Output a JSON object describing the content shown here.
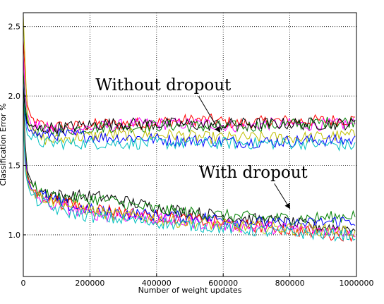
{
  "chart_data": {
    "type": "line",
    "xlabel": "Number of weight updates",
    "ylabel": "Classification Error %",
    "xlim": [
      0,
      1000000
    ],
    "ylim": [
      0.7,
      2.6
    ],
    "x_ticks": [
      0,
      200000,
      400000,
      600000,
      800000,
      1000000
    ],
    "x_tick_labels": [
      "0",
      "200000",
      "400000",
      "600000",
      "800000",
      "1000000"
    ],
    "y_ticks": [
      1.0,
      1.5,
      2.0,
      2.5
    ],
    "y_tick_labels": [
      "1.0",
      "1.5",
      "2.0",
      "2.5"
    ],
    "grid": true,
    "grid_style": "dotted",
    "annotations": [
      {
        "text": "Without dropout",
        "x": 420000,
        "y": 2.04,
        "arrow_to": [
          590000,
          1.74
        ]
      },
      {
        "text": "With dropout",
        "x": 690000,
        "y": 1.41,
        "arrow_to": [
          800000,
          1.19
        ]
      }
    ],
    "series_groups": [
      {
        "group": "Without dropout",
        "series": [
          {
            "color": "#ff0000",
            "points": [
              [
                0,
                2.4
              ],
              [
                5000,
                2.2
              ],
              [
                10000,
                1.95
              ],
              [
                20000,
                1.85
              ],
              [
                40000,
                1.8
              ],
              [
                80000,
                1.78
              ],
              [
                150000,
                1.78
              ],
              [
                250000,
                1.8
              ],
              [
                350000,
                1.8
              ],
              [
                450000,
                1.82
              ],
              [
                550000,
                1.83
              ],
              [
                650000,
                1.8
              ],
              [
                750000,
                1.82
              ],
              [
                850000,
                1.82
              ],
              [
                1000000,
                1.83
              ]
            ]
          },
          {
            "color": "#ff00ff",
            "points": [
              [
                0,
                2.3
              ],
              [
                5000,
                2.05
              ],
              [
                10000,
                1.9
              ],
              [
                20000,
                1.8
              ],
              [
                40000,
                1.78
              ],
              [
                80000,
                1.76
              ],
              [
                150000,
                1.76
              ],
              [
                250000,
                1.78
              ],
              [
                350000,
                1.8
              ],
              [
                450000,
                1.8
              ],
              [
                550000,
                1.8
              ],
              [
                650000,
                1.78
              ],
              [
                750000,
                1.8
              ],
              [
                850000,
                1.79
              ],
              [
                1000000,
                1.8
              ]
            ]
          },
          {
            "color": "#008000",
            "points": [
              [
                0,
                2.2
              ],
              [
                5000,
                1.95
              ],
              [
                10000,
                1.85
              ],
              [
                20000,
                1.78
              ],
              [
                40000,
                1.75
              ],
              [
                80000,
                1.75
              ],
              [
                150000,
                1.76
              ],
              [
                250000,
                1.78
              ],
              [
                350000,
                1.78
              ],
              [
                450000,
                1.79
              ],
              [
                550000,
                1.78
              ],
              [
                650000,
                1.78
              ],
              [
                750000,
                1.79
              ],
              [
                850000,
                1.8
              ],
              [
                1000000,
                1.82
              ]
            ]
          },
          {
            "color": "#bfbf00",
            "points": [
              [
                0,
                2.6
              ],
              [
                5000,
                2.3
              ],
              [
                10000,
                1.9
              ],
              [
                20000,
                1.78
              ],
              [
                40000,
                1.7
              ],
              [
                80000,
                1.68
              ],
              [
                150000,
                1.7
              ],
              [
                250000,
                1.72
              ],
              [
                350000,
                1.72
              ],
              [
                450000,
                1.72
              ],
              [
                550000,
                1.7
              ],
              [
                650000,
                1.7
              ],
              [
                750000,
                1.7
              ],
              [
                850000,
                1.7
              ],
              [
                1000000,
                1.72
              ]
            ]
          },
          {
            "color": "#0000ff",
            "points": [
              [
                0,
                2.1
              ],
              [
                5000,
                1.9
              ],
              [
                10000,
                1.8
              ],
              [
                20000,
                1.75
              ],
              [
                40000,
                1.72
              ],
              [
                80000,
                1.72
              ],
              [
                150000,
                1.72
              ],
              [
                250000,
                1.7
              ],
              [
                350000,
                1.7
              ],
              [
                450000,
                1.68
              ],
              [
                550000,
                1.68
              ],
              [
                650000,
                1.67
              ],
              [
                750000,
                1.67
              ],
              [
                850000,
                1.68
              ],
              [
                1000000,
                1.68
              ]
            ]
          },
          {
            "color": "#00bfbf",
            "points": [
              [
                0,
                2.0
              ],
              [
                5000,
                1.85
              ],
              [
                10000,
                1.75
              ],
              [
                20000,
                1.7
              ],
              [
                40000,
                1.67
              ],
              [
                80000,
                1.66
              ],
              [
                150000,
                1.66
              ],
              [
                250000,
                1.66
              ],
              [
                350000,
                1.66
              ],
              [
                450000,
                1.66
              ],
              [
                550000,
                1.66
              ],
              [
                650000,
                1.66
              ],
              [
                750000,
                1.66
              ],
              [
                850000,
                1.66
              ],
              [
                1000000,
                1.64
              ]
            ]
          },
          {
            "color": "#000000",
            "points": [
              [
                0,
                2.05
              ],
              [
                5000,
                1.9
              ],
              [
                10000,
                1.82
              ],
              [
                20000,
                1.78
              ],
              [
                40000,
                1.76
              ],
              [
                80000,
                1.77
              ],
              [
                150000,
                1.78
              ],
              [
                250000,
                1.8
              ],
              [
                350000,
                1.8
              ],
              [
                450000,
                1.8
              ],
              [
                550000,
                1.79
              ],
              [
                650000,
                1.8
              ],
              [
                750000,
                1.8
              ],
              [
                850000,
                1.8
              ],
              [
                1000000,
                1.8
              ]
            ]
          }
        ]
      },
      {
        "group": "With dropout",
        "series": [
          {
            "color": "#000000",
            "points": [
              [
                0,
                2.0
              ],
              [
                5000,
                1.7
              ],
              [
                10000,
                1.5
              ],
              [
                20000,
                1.4
              ],
              [
                40000,
                1.33
              ],
              [
                80000,
                1.3
              ],
              [
                120000,
                1.28
              ],
              [
                180000,
                1.28
              ],
              [
                250000,
                1.27
              ],
              [
                350000,
                1.22
              ],
              [
                450000,
                1.18
              ],
              [
                550000,
                1.15
              ],
              [
                650000,
                1.12
              ],
              [
                750000,
                1.1
              ],
              [
                850000,
                1.07
              ],
              [
                950000,
                1.05
              ],
              [
                1000000,
                1.05
              ]
            ]
          },
          {
            "color": "#008000",
            "points": [
              [
                0,
                1.95
              ],
              [
                5000,
                1.65
              ],
              [
                10000,
                1.48
              ],
              [
                20000,
                1.38
              ],
              [
                40000,
                1.32
              ],
              [
                80000,
                1.28
              ],
              [
                120000,
                1.27
              ],
              [
                180000,
                1.26
              ],
              [
                250000,
                1.25
              ],
              [
                350000,
                1.2
              ],
              [
                450000,
                1.17
              ],
              [
                550000,
                1.15
              ],
              [
                650000,
                1.13
              ],
              [
                750000,
                1.12
              ],
              [
                850000,
                1.12
              ],
              [
                950000,
                1.13
              ],
              [
                1000000,
                1.15
              ]
            ]
          },
          {
            "color": "#ff0000",
            "points": [
              [
                0,
                1.9
              ],
              [
                5000,
                1.6
              ],
              [
                10000,
                1.45
              ],
              [
                20000,
                1.35
              ],
              [
                40000,
                1.3
              ],
              [
                80000,
                1.26
              ],
              [
                120000,
                1.23
              ],
              [
                180000,
                1.2
              ],
              [
                250000,
                1.18
              ],
              [
                350000,
                1.15
              ],
              [
                450000,
                1.12
              ],
              [
                550000,
                1.1
              ],
              [
                650000,
                1.07
              ],
              [
                750000,
                1.05
              ],
              [
                850000,
                1.02
              ],
              [
                950000,
                1.0
              ],
              [
                1000000,
                1.0
              ]
            ]
          },
          {
            "color": "#0000ff",
            "points": [
              [
                0,
                1.9
              ],
              [
                5000,
                1.6
              ],
              [
                10000,
                1.44
              ],
              [
                20000,
                1.35
              ],
              [
                40000,
                1.3
              ],
              [
                80000,
                1.26
              ],
              [
                120000,
                1.22
              ],
              [
                180000,
                1.19
              ],
              [
                250000,
                1.16
              ],
              [
                350000,
                1.15
              ],
              [
                450000,
                1.13
              ],
              [
                550000,
                1.12
              ],
              [
                650000,
                1.1
              ],
              [
                750000,
                1.08
              ],
              [
                850000,
                1.08
              ],
              [
                950000,
                1.1
              ],
              [
                1000000,
                1.1
              ]
            ]
          },
          {
            "color": "#ff00ff",
            "points": [
              [
                0,
                1.85
              ],
              [
                5000,
                1.55
              ],
              [
                10000,
                1.4
              ],
              [
                20000,
                1.32
              ],
              [
                40000,
                1.27
              ],
              [
                80000,
                1.22
              ],
              [
                120000,
                1.2
              ],
              [
                180000,
                1.16
              ],
              [
                250000,
                1.14
              ],
              [
                350000,
                1.13
              ],
              [
                450000,
                1.1
              ],
              [
                550000,
                1.08
              ],
              [
                650000,
                1.06
              ],
              [
                750000,
                1.05
              ],
              [
                850000,
                1.04
              ],
              [
                950000,
                1.03
              ],
              [
                1000000,
                1.02
              ]
            ]
          },
          {
            "color": "#bfbf00",
            "points": [
              [
                0,
                1.85
              ],
              [
                5000,
                1.55
              ],
              [
                10000,
                1.42
              ],
              [
                20000,
                1.34
              ],
              [
                40000,
                1.29
              ],
              [
                80000,
                1.25
              ],
              [
                120000,
                1.22
              ],
              [
                180000,
                1.19
              ],
              [
                250000,
                1.15
              ],
              [
                350000,
                1.13
              ],
              [
                450000,
                1.1
              ],
              [
                550000,
                1.08
              ],
              [
                650000,
                1.06
              ],
              [
                750000,
                1.05
              ],
              [
                850000,
                1.04
              ],
              [
                950000,
                1.03
              ],
              [
                1000000,
                1.02
              ]
            ]
          },
          {
            "color": "#00bfbf",
            "points": [
              [
                0,
                1.8
              ],
              [
                5000,
                1.5
              ],
              [
                10000,
                1.38
              ],
              [
                20000,
                1.3
              ],
              [
                40000,
                1.25
              ],
              [
                80000,
                1.2
              ],
              [
                120000,
                1.17
              ],
              [
                180000,
                1.14
              ],
              [
                250000,
                1.12
              ],
              [
                350000,
                1.1
              ],
              [
                450000,
                1.08
              ],
              [
                550000,
                1.06
              ],
              [
                650000,
                1.04
              ],
              [
                750000,
                1.02
              ],
              [
                850000,
                1.01
              ],
              [
                950000,
                1.0
              ],
              [
                1000000,
                1.0
              ]
            ]
          }
        ]
      }
    ]
  }
}
